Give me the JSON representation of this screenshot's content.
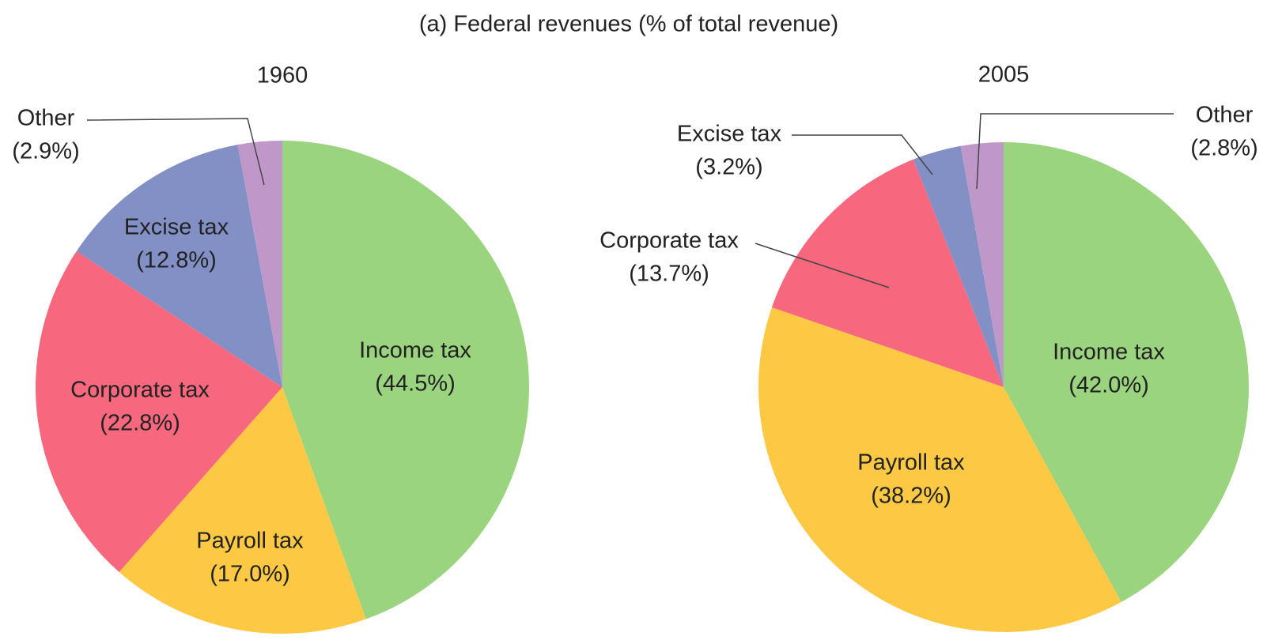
{
  "title": "(a) Federal revenues (% of total revenue)",
  "chart_data": [
    {
      "type": "pie",
      "title": "1960",
      "categories": [
        "Income tax",
        "Payroll tax",
        "Corporate tax",
        "Excise tax",
        "Other"
      ],
      "values": [
        44.5,
        17.0,
        22.8,
        12.8,
        2.9
      ],
      "value_labels": [
        "(44.5%)",
        "(17.0%)",
        "(22.8%)",
        "(12.8%)",
        "(2.9%)"
      ],
      "colors": [
        "#9bd47f",
        "#fdc944",
        "#f7687e",
        "#8290c6",
        "#bf97c9"
      ]
    },
    {
      "type": "pie",
      "title": "2005",
      "categories": [
        "Income tax",
        "Payroll tax",
        "Corporate tax",
        "Excise tax",
        "Other"
      ],
      "values": [
        42.0,
        38.2,
        13.7,
        3.2,
        2.8
      ],
      "value_labels": [
        "(42.0%)",
        "(38.2%)",
        "(13.7%)",
        "(3.2%)",
        "(2.8%)"
      ],
      "colors": [
        "#9bd47f",
        "#fdc944",
        "#f7687e",
        "#8290c6",
        "#bf97c9"
      ]
    }
  ]
}
